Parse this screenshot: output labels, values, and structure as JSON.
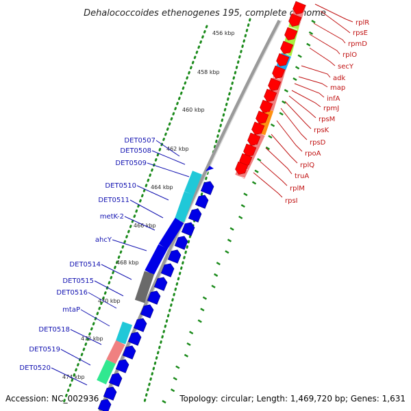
{
  "title": "Dehalococcoides ethenogenes 195, complete genome",
  "accession": "Accession: NC_002936",
  "topology": "Topology: circular; Length: 1,469,720 bp; Genes: 1,631",
  "colors": {
    "backbone": "#8a8a8a",
    "forward_feature": "#0000e6",
    "reverse_feature": "#ff0000",
    "kbp_dots": "#1a8a1a",
    "label_forward": "#1010b0",
    "label_reverse": "#c01010",
    "cyan": "#20c8d8",
    "gray": "#6a6a6a",
    "salmon": "#f08080",
    "mint": "#30e890",
    "lime": "#a8f040",
    "orange": "#ff9010",
    "sky": "#20a8f0"
  },
  "ticks": [
    "456 kbp",
    "458 kbp",
    "460 kbp",
    "462 kbp",
    "464 kbp",
    "466 kbp",
    "468 kbp",
    "470 kbp",
    "472 kbp",
    "474 kbp"
  ],
  "left_labels": [
    "DET0507",
    "DET0508",
    "DET0509",
    "DET0510",
    "DET0511",
    "metK-2",
    "ahcY",
    "DET0514",
    "DET0515",
    "DET0516",
    "mtaP",
    "DET0518",
    "DET0519",
    "DET0520"
  ],
  "right_labels": [
    "rplR",
    "rpsE",
    "rpmD",
    "rplO",
    "secY",
    "adk",
    "map",
    "infA",
    "rpmJ",
    "rpsM",
    "rpsK",
    "rpsD",
    "rpoA",
    "rplQ",
    "truA",
    "rplM",
    "rpsI"
  ]
}
